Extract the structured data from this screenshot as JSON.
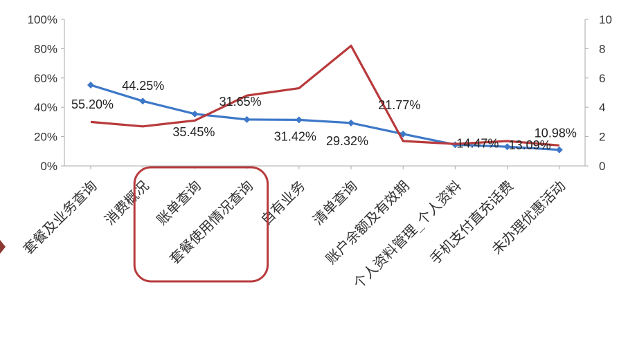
{
  "chart_data": {
    "type": "line",
    "categories": [
      "套餐及业务查询",
      "消费概况",
      "账单查询",
      "套餐使用情况查询",
      "自有业务",
      "清单查询",
      "账户余额及有效期",
      "个人资料管理_个人资料",
      "手机支付直充话费",
      "未办理优惠活动"
    ],
    "series": [
      {
        "axis": "left",
        "color": "#3d78c8",
        "marker": "diamond",
        "values": [
          55.2,
          44.25,
          35.45,
          31.65,
          31.42,
          29.32,
          21.77,
          14.47,
          13.09,
          10.98
        ],
        "labels": [
          "55.20%",
          "44.25%",
          "35.45%",
          "31.65%",
          "31.42%",
          "29.32%",
          "21.77%",
          "14.47%",
          "13.09%",
          "10.98%"
        ]
      },
      {
        "axis": "right",
        "color": "#b83a3c",
        "marker": "none",
        "values": [
          3.0,
          2.7,
          3.1,
          4.8,
          5.3,
          8.2,
          1.7,
          1.5,
          1.7,
          1.4
        ]
      }
    ],
    "y_left": {
      "min": 0,
      "max": 100,
      "ticks": [
        "0%",
        "20%",
        "40%",
        "60%",
        "80%",
        "100%"
      ]
    },
    "y_right": {
      "min": 0,
      "max": 10,
      "ticks": [
        "0",
        "2",
        "4",
        "6",
        "8",
        "10"
      ]
    },
    "highlight": {
      "from_category": 1,
      "to_category": 3,
      "color": "#b83a3c"
    },
    "grid": false,
    "legend": "none"
  }
}
